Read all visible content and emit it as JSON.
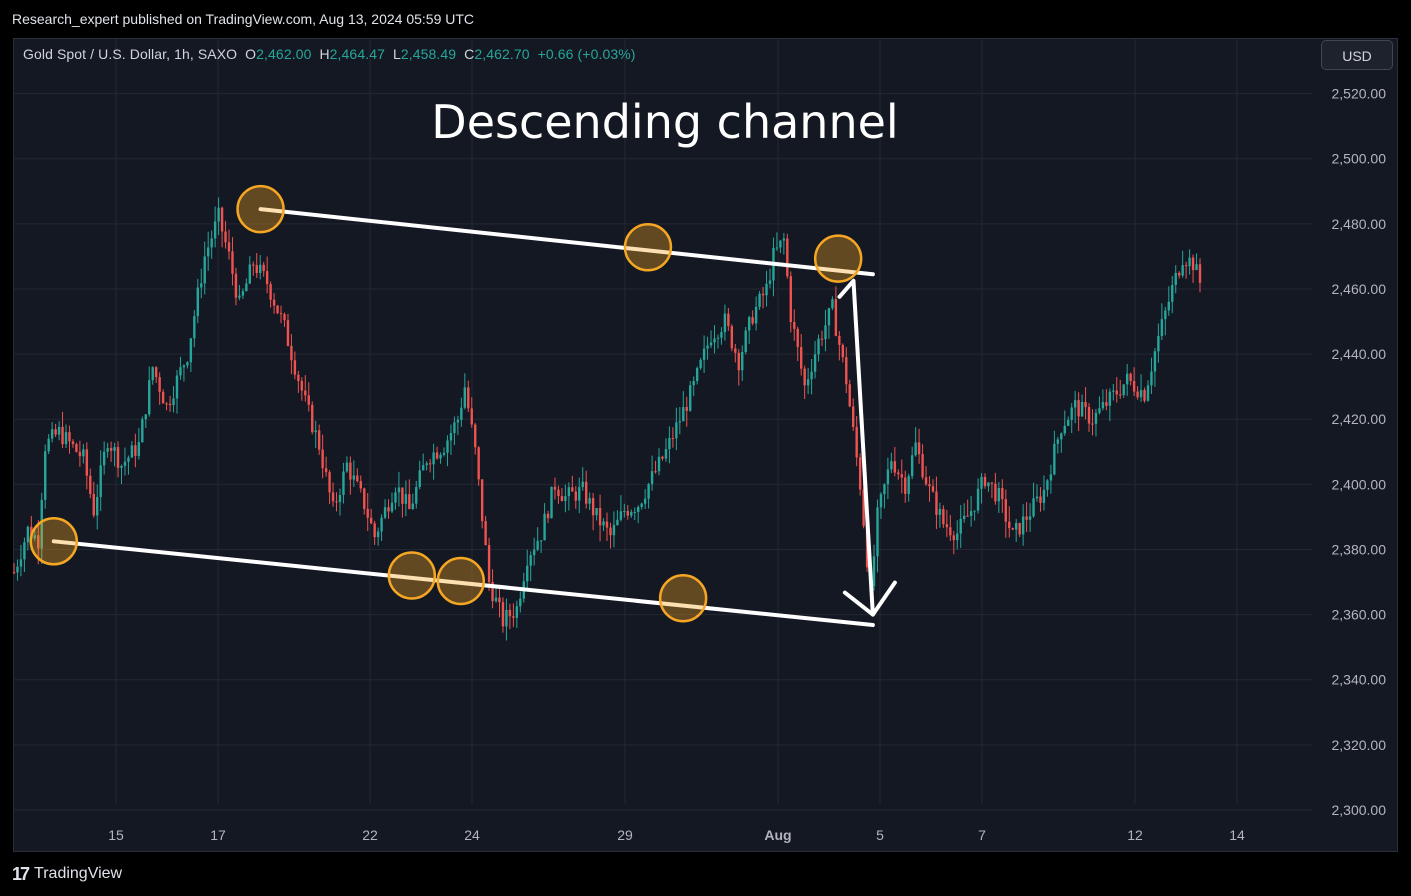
{
  "header": {
    "publisher_line": "Research_expert published on TradingView.com, Aug 13, 2024 05:59 UTC"
  },
  "legend": {
    "symbol": "Gold Spot / U.S. Dollar, 1h, SAXO",
    "o_label": "O",
    "o_value": "2,462.00",
    "h_label": "H",
    "h_value": "2,464.47",
    "l_label": "L",
    "l_value": "2,458.49",
    "c_label": "C",
    "c_value": "2,462.70",
    "change": "+0.66 (+0.03%)"
  },
  "currency_button": "USD",
  "footer": {
    "brand": "TradingView"
  },
  "colors": {
    "up": "#26a69a",
    "down": "#ef5350",
    "background": "#141823",
    "grid": "#232733",
    "channel": "#ffffff",
    "marker": "#f5a623"
  },
  "chart_data": {
    "type": "candlestick",
    "title": "Descending channel",
    "ylim": [
      2292,
      2530
    ],
    "y_ticks": [
      "2,520.00",
      "2,500.00",
      "2,480.00",
      "2,460.00",
      "2,440.00",
      "2,420.00",
      "2,400.00",
      "2,380.00",
      "2,360.00",
      "2,340.00",
      "2,320.00",
      "2,300.00"
    ],
    "x_ticks": [
      "15",
      "17",
      "22",
      "24",
      "29",
      "Aug",
      "5",
      "7",
      "12",
      "14"
    ],
    "price_path": [
      [
        0,
        2373
      ],
      [
        4,
        2386
      ],
      [
        7,
        2383
      ],
      [
        9,
        2412
      ],
      [
        13,
        2416
      ],
      [
        20,
        2408
      ],
      [
        23,
        2392
      ],
      [
        27,
        2414
      ],
      [
        31,
        2406
      ],
      [
        36,
        2412
      ],
      [
        40,
        2436
      ],
      [
        44,
        2424
      ],
      [
        50,
        2440
      ],
      [
        55,
        2470
      ],
      [
        59,
        2482
      ],
      [
        62,
        2470
      ],
      [
        65,
        2455
      ],
      [
        69,
        2468
      ],
      [
        73,
        2462
      ],
      [
        78,
        2448
      ],
      [
        84,
        2425
      ],
      [
        88,
        2412
      ],
      [
        92,
        2392
      ],
      [
        96,
        2406
      ],
      [
        101,
        2394
      ],
      [
        104,
        2384
      ],
      [
        110,
        2400
      ],
      [
        114,
        2392
      ],
      [
        119,
        2408
      ],
      [
        124,
        2412
      ],
      [
        128,
        2420
      ],
      [
        130,
        2430
      ],
      [
        133,
        2410
      ],
      [
        137,
        2370
      ],
      [
        141,
        2358
      ],
      [
        145,
        2362
      ],
      [
        148,
        2378
      ],
      [
        152,
        2385
      ],
      [
        156,
        2400
      ],
      [
        159,
        2396
      ],
      [
        164,
        2398
      ],
      [
        168,
        2390
      ],
      [
        172,
        2384
      ],
      [
        176,
        2392
      ],
      [
        180,
        2394
      ],
      [
        184,
        2402
      ],
      [
        188,
        2410
      ],
      [
        192,
        2420
      ],
      [
        196,
        2430
      ],
      [
        201,
        2446
      ],
      [
        205,
        2450
      ],
      [
        209,
        2438
      ],
      [
        213,
        2452
      ],
      [
        217,
        2460
      ],
      [
        219,
        2470
      ],
      [
        222,
        2475
      ],
      [
        224,
        2452
      ],
      [
        228,
        2430
      ],
      [
        232,
        2444
      ],
      [
        236,
        2454
      ],
      [
        240,
        2432
      ],
      [
        244,
        2400
      ],
      [
        247,
        2366
      ],
      [
        249,
        2390
      ],
      [
        253,
        2408
      ],
      [
        257,
        2400
      ],
      [
        260,
        2412
      ],
      [
        264,
        2398
      ],
      [
        268,
        2388
      ],
      [
        272,
        2385
      ],
      [
        276,
        2392
      ],
      [
        280,
        2402
      ],
      [
        284,
        2396
      ],
      [
        288,
        2384
      ],
      [
        292,
        2390
      ],
      [
        297,
        2398
      ],
      [
        302,
        2418
      ],
      [
        306,
        2424
      ],
      [
        311,
        2420
      ],
      [
        316,
        2426
      ],
      [
        321,
        2432
      ],
      [
        326,
        2428
      ],
      [
        330,
        2445
      ],
      [
        334,
        2460
      ],
      [
        337,
        2470
      ],
      [
        340,
        2468
      ],
      [
        342,
        2462
      ]
    ],
    "channel": {
      "upper": [
        {
          "x": 1.28,
          "y": 2484.5
        },
        {
          "x": 5.93,
          "y": 2464.5
        }
      ],
      "lower": [
        {
          "x": -0.61,
          "y": 2382.5
        },
        {
          "x": 5.93,
          "y": 2356.8
        }
      ]
    },
    "touch_points": [
      {
        "x": -0.61,
        "y": 2382.5
      },
      {
        "x": 1.28,
        "y": 2484.5
      },
      {
        "x": 2.41,
        "y": 2372.0
      },
      {
        "x": 2.89,
        "y": 2370.3
      },
      {
        "x": 4.15,
        "y": 2472.8
      },
      {
        "x": 4.38,
        "y": 2365.0
      },
      {
        "x": 5.59,
        "y": 2469.3
      }
    ],
    "projection_arrow": {
      "from": {
        "x": 5.74,
        "y": 2462.5
      },
      "to": {
        "x": 5.93,
        "y": 2360.0
      }
    }
  }
}
